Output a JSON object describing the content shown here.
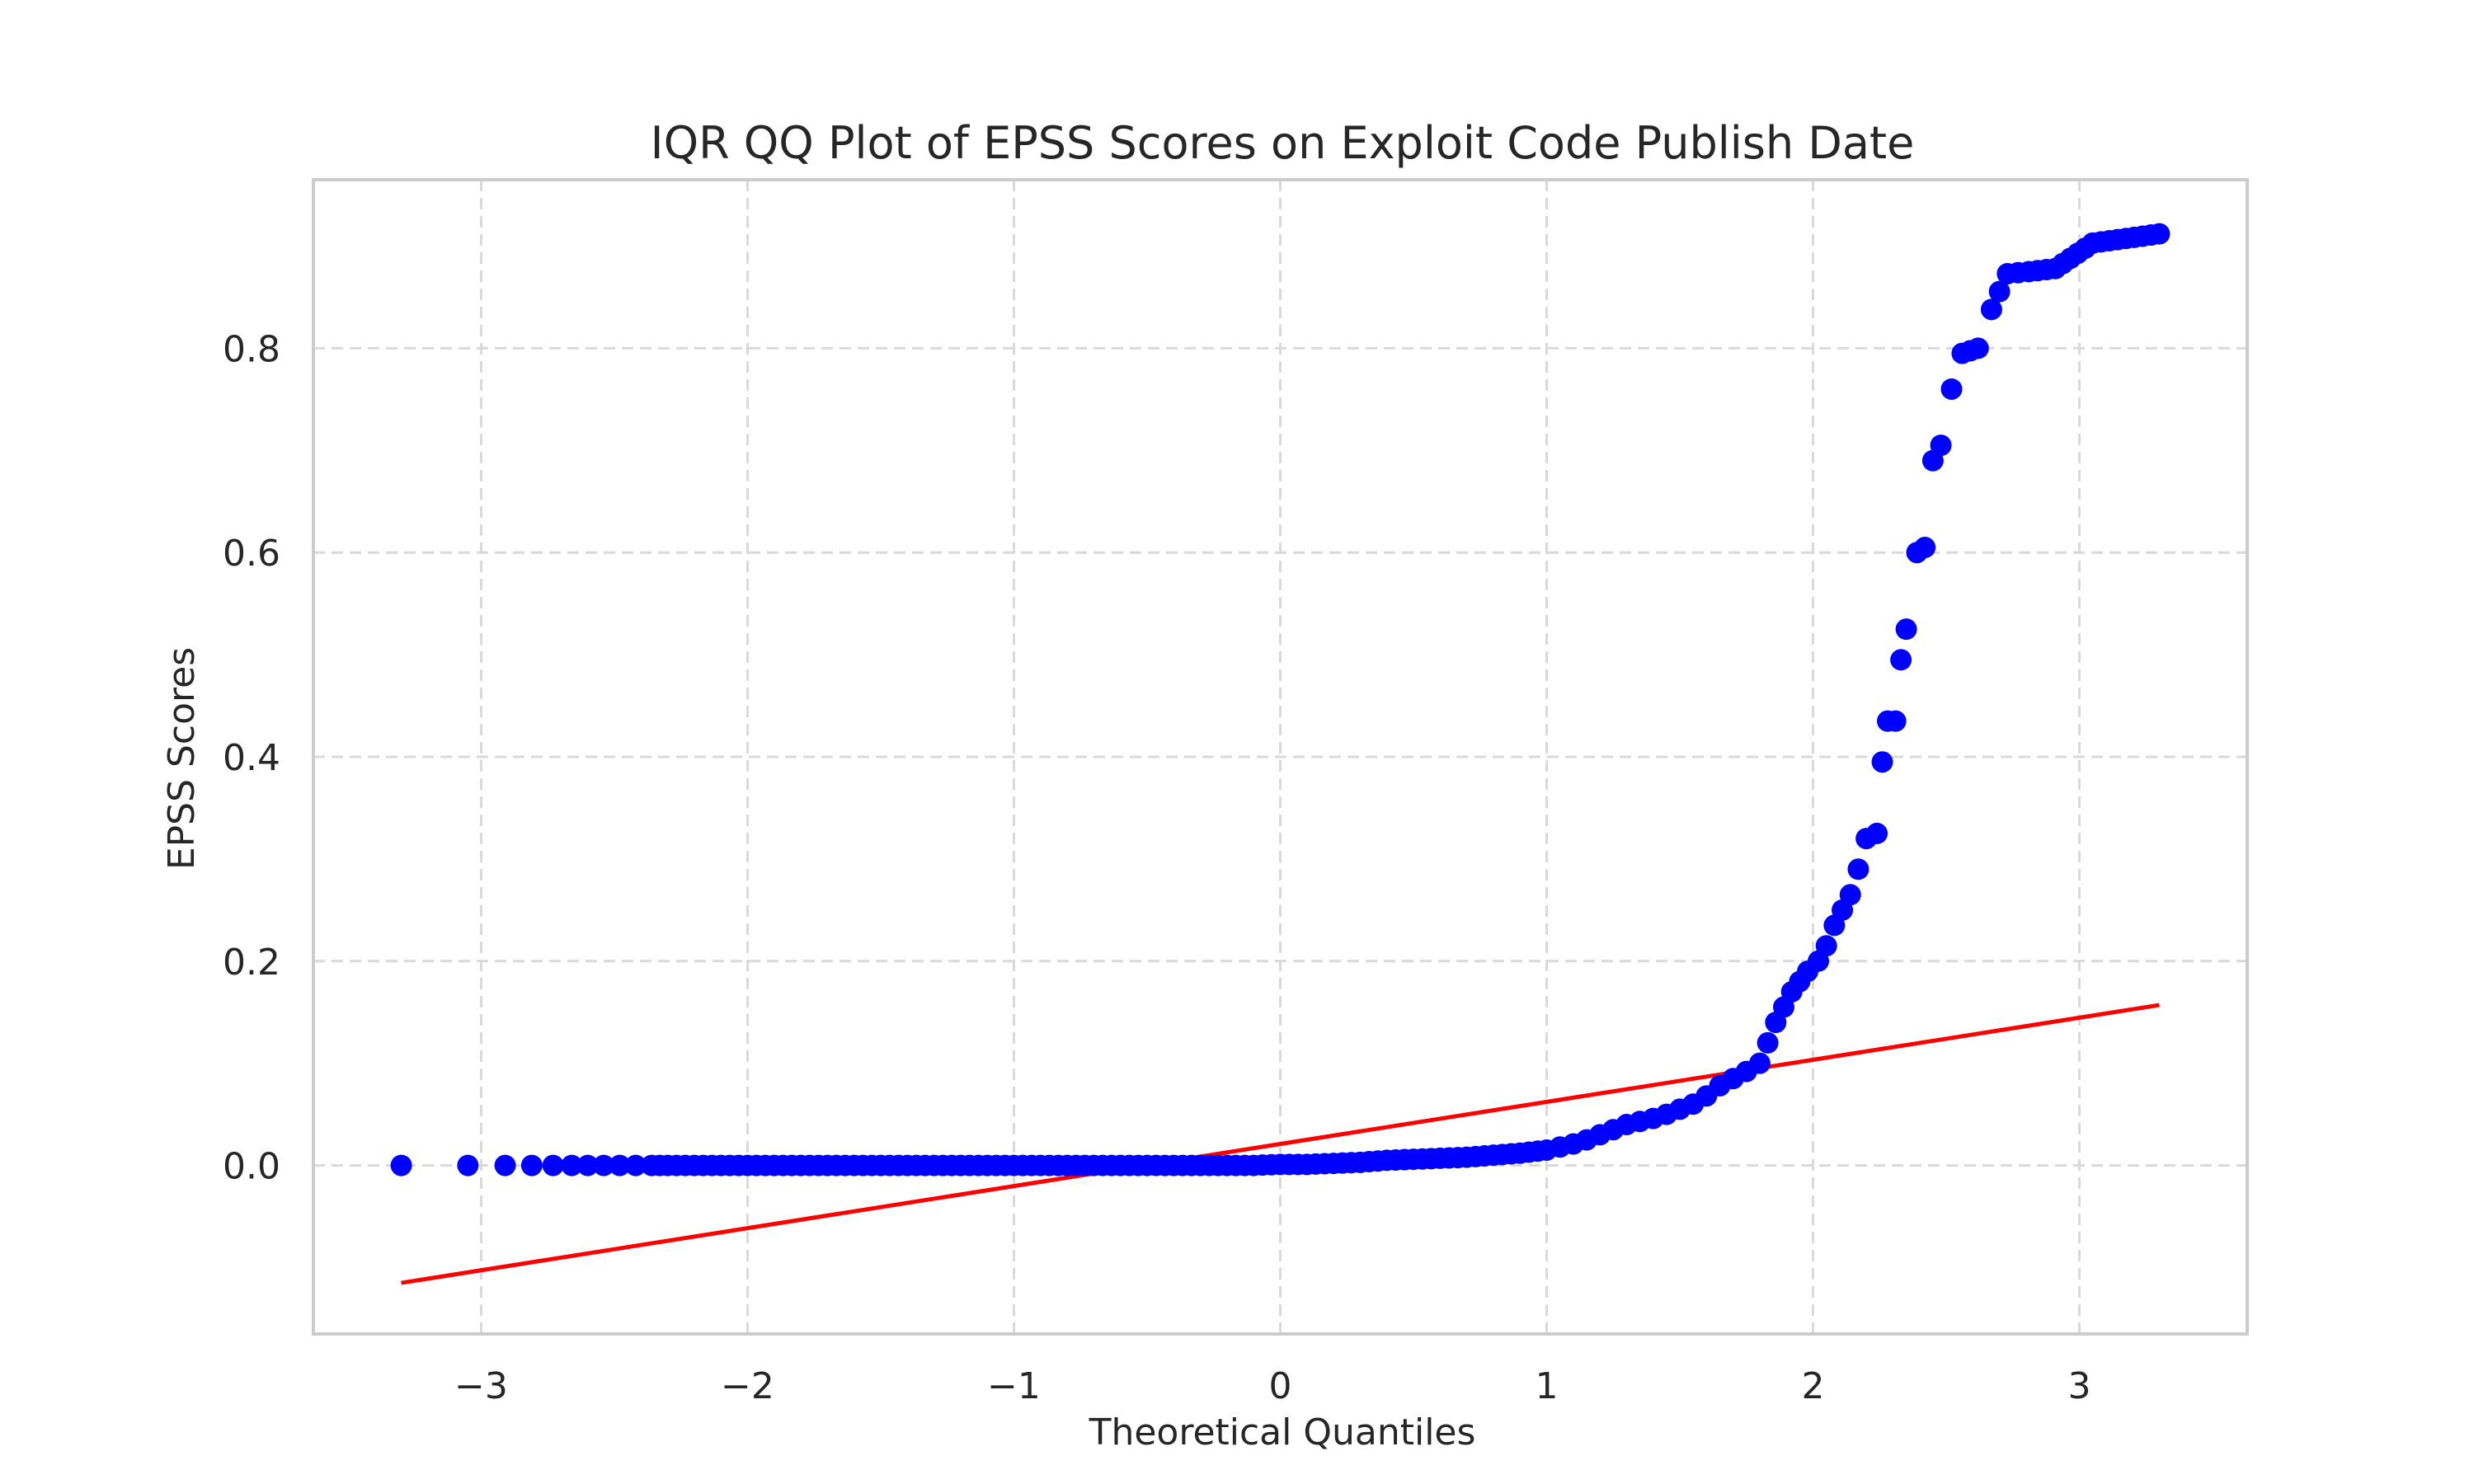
{
  "chart_data": {
    "type": "scatter",
    "title": "IQR QQ Plot of EPSS Scores on Exploit Code Publish Date",
    "xlabel": "Theoretical Quantiles",
    "ylabel": "EPSS Scores",
    "xlim": [
      -3.63,
      3.63
    ],
    "ylim": [
      -0.165,
      0.965
    ],
    "xticks": [
      -3,
      -2,
      -1,
      0,
      1,
      2,
      3
    ],
    "xtick_labels": [
      "−3",
      "−2",
      "−1",
      "0",
      "1",
      "2",
      "3"
    ],
    "yticks": [
      0.0,
      0.2,
      0.4,
      0.6,
      0.8
    ],
    "ytick_labels": [
      "0.0",
      "0.2",
      "0.4",
      "0.6",
      "0.8"
    ],
    "grid": true,
    "series": [
      {
        "kind": "points",
        "color": "#0000ff",
        "points": [
          [
            -3.3,
            0.0
          ],
          [
            -3.05,
            0.0
          ],
          [
            -2.91,
            0.0
          ],
          [
            -2.81,
            0.0
          ],
          [
            -2.73,
            0.0
          ],
          [
            -2.66,
            0.0
          ],
          [
            -2.6,
            0.0
          ],
          [
            -2.54,
            0.0
          ],
          [
            -2.48,
            0.0
          ],
          [
            -2.42,
            0.0
          ],
          [
            -2.36,
            0.0
          ],
          [
            -2.3,
            0.0
          ],
          [
            -2.2,
            0.0
          ],
          [
            -2.1,
            0.0
          ],
          [
            -2.0,
            0.0
          ],
          [
            -1.9,
            0.0
          ],
          [
            -1.8,
            0.0
          ],
          [
            -1.7,
            0.0
          ],
          [
            -1.6,
            0.0
          ],
          [
            -1.5,
            0.0
          ],
          [
            -1.4,
            0.0
          ],
          [
            -1.3,
            0.0
          ],
          [
            -1.2,
            0.0
          ],
          [
            -1.1,
            0.0
          ],
          [
            -1.0,
            0.0
          ],
          [
            -0.9,
            0.0
          ],
          [
            -0.8,
            0.0
          ],
          [
            -0.7,
            0.0
          ],
          [
            -0.6,
            0.0
          ],
          [
            -0.5,
            0.0
          ],
          [
            -0.4,
            0.0
          ],
          [
            -0.3,
            0.0
          ],
          [
            -0.2,
            0.0
          ],
          [
            -0.1,
            0.0
          ],
          [
            0.0,
            0.001
          ],
          [
            0.1,
            0.001
          ],
          [
            0.2,
            0.002
          ],
          [
            0.3,
            0.003
          ],
          [
            0.4,
            0.005
          ],
          [
            0.5,
            0.006
          ],
          [
            0.6,
            0.007
          ],
          [
            0.7,
            0.008
          ],
          [
            0.8,
            0.01
          ],
          [
            0.9,
            0.012
          ],
          [
            1.0,
            0.015
          ],
          [
            1.05,
            0.018
          ],
          [
            1.1,
            0.021
          ],
          [
            1.15,
            0.025
          ],
          [
            1.2,
            0.03
          ],
          [
            1.25,
            0.035
          ],
          [
            1.3,
            0.04
          ],
          [
            1.35,
            0.043
          ],
          [
            1.4,
            0.046
          ],
          [
            1.45,
            0.05
          ],
          [
            1.5,
            0.055
          ],
          [
            1.55,
            0.06
          ],
          [
            1.6,
            0.068
          ],
          [
            1.65,
            0.078
          ],
          [
            1.7,
            0.085
          ],
          [
            1.75,
            0.092
          ],
          [
            1.8,
            0.1
          ],
          [
            1.83,
            0.12
          ],
          [
            1.86,
            0.14
          ],
          [
            1.89,
            0.155
          ],
          [
            1.92,
            0.17
          ],
          [
            1.95,
            0.18
          ],
          [
            1.98,
            0.19
          ],
          [
            2.02,
            0.2
          ],
          [
            2.05,
            0.215
          ],
          [
            2.08,
            0.235
          ],
          [
            2.11,
            0.25
          ],
          [
            2.14,
            0.265
          ],
          [
            2.17,
            0.29
          ],
          [
            2.2,
            0.32
          ],
          [
            2.24,
            0.325
          ],
          [
            2.26,
            0.395
          ],
          [
            2.28,
            0.435
          ],
          [
            2.31,
            0.435
          ],
          [
            2.33,
            0.495
          ],
          [
            2.35,
            0.525
          ],
          [
            2.39,
            0.6
          ],
          [
            2.42,
            0.605
          ],
          [
            2.45,
            0.69
          ],
          [
            2.48,
            0.705
          ],
          [
            2.52,
            0.76
          ],
          [
            2.56,
            0.795
          ],
          [
            2.62,
            0.8
          ],
          [
            2.67,
            0.838
          ],
          [
            2.73,
            0.873
          ],
          [
            2.81,
            0.875
          ],
          [
            2.91,
            0.878
          ],
          [
            3.05,
            0.903
          ],
          [
            3.3,
            0.912
          ]
        ]
      },
      {
        "kind": "line",
        "color": "#ff0000",
        "points": [
          [
            -3.3,
            -0.115
          ],
          [
            3.3,
            0.157
          ]
        ]
      }
    ]
  }
}
